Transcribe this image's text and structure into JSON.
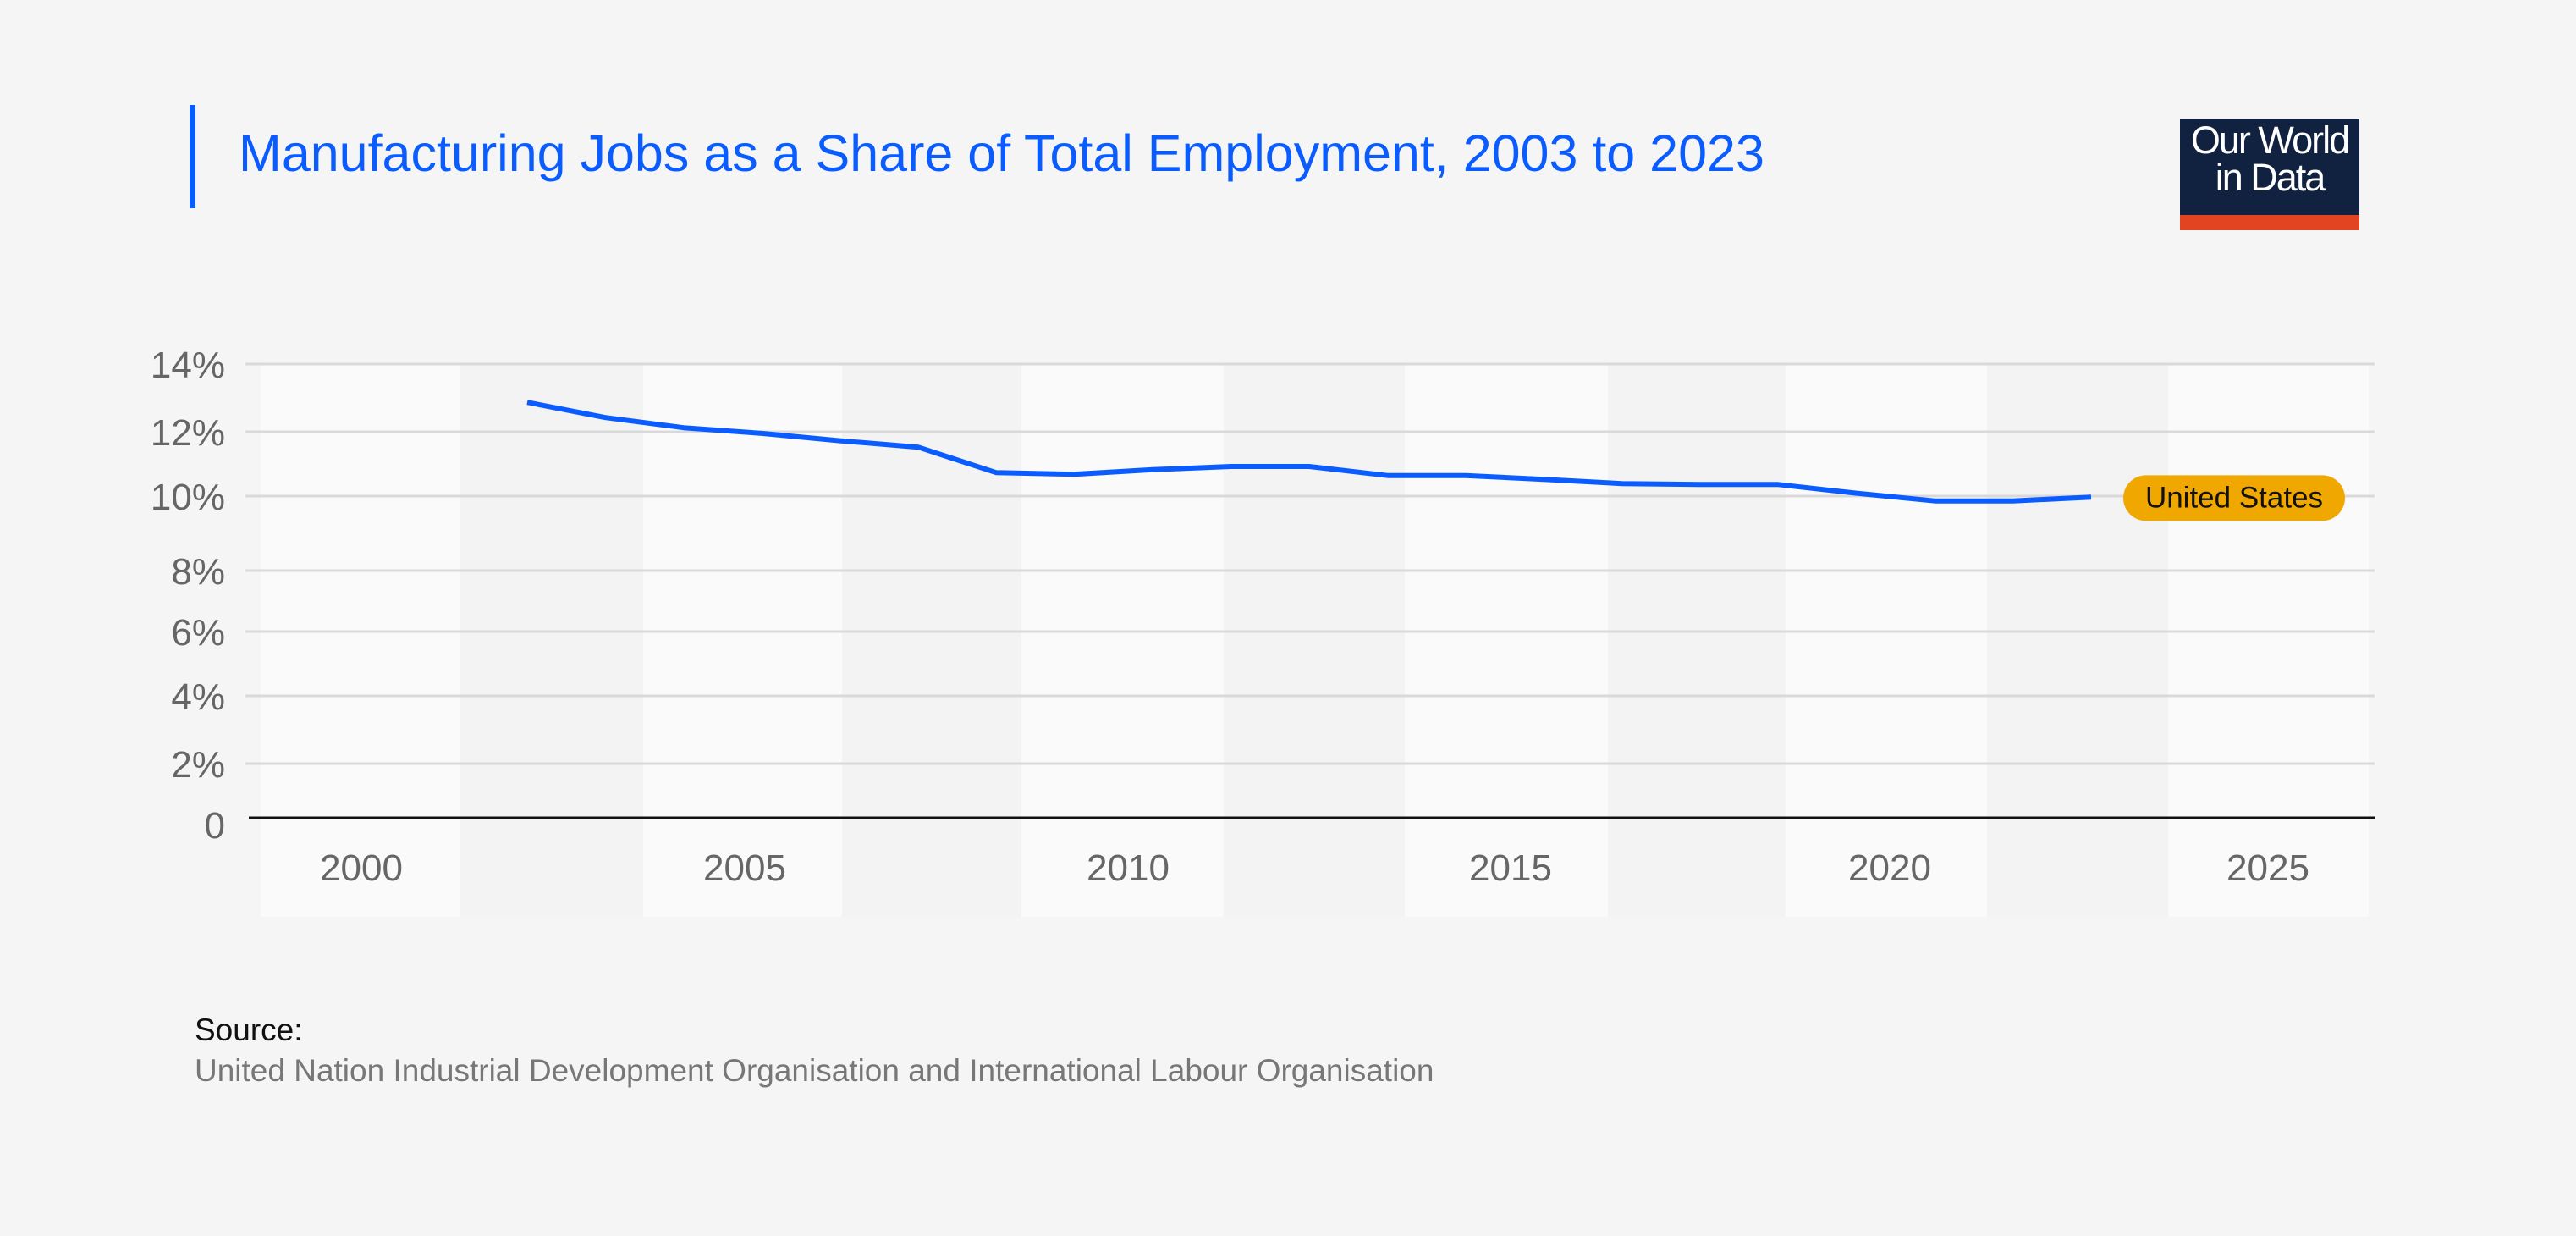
{
  "title": "Manufacturing Jobs as a Share of Total Employment, 2003 to 2023",
  "logo": {
    "line1": "Our World",
    "line2": "in Data"
  },
  "source": {
    "label": "Source:",
    "text": "United Nation Industrial Development Organisation and International Labour Organisation"
  },
  "colors": {
    "line": "#0b5cff",
    "label_bg": "#f0a800",
    "title": "#0b5cff"
  },
  "chart_data": {
    "type": "line",
    "title": "Manufacturing Jobs as a Share of Total Employment, 2003 to 2023",
    "xlabel": "",
    "ylabel": "",
    "y_ticks": [
      {
        "value": 0,
        "label": "0"
      },
      {
        "value": 2,
        "label": "2%"
      },
      {
        "value": 4,
        "label": "4%"
      },
      {
        "value": 6,
        "label": "6%"
      },
      {
        "value": 8,
        "label": "8%"
      },
      {
        "value": 10,
        "label": "10%"
      },
      {
        "value": 12,
        "label": "12%"
      },
      {
        "value": 14,
        "label": "14%"
      }
    ],
    "x_ticks": [
      "2000",
      "2005",
      "2010",
      "2015",
      "2020",
      "2025"
    ],
    "ylim": [
      0,
      14
    ],
    "grid": true,
    "series": [
      {
        "name": "United States",
        "x": [
          2003,
          2004,
          2005,
          2006,
          2007,
          2008,
          2009,
          2010,
          2011,
          2012,
          2013,
          2014,
          2015,
          2016,
          2017,
          2018,
          2019,
          2020,
          2021,
          2022,
          2023
        ],
        "values": [
          12.87,
          12.42,
          12.12,
          11.95,
          11.72,
          11.52,
          10.73,
          10.68,
          10.82,
          10.92,
          10.92,
          10.64,
          10.64,
          10.52,
          10.39,
          10.36,
          10.36,
          10.09,
          9.87,
          9.87,
          9.97
        ]
      }
    ]
  }
}
